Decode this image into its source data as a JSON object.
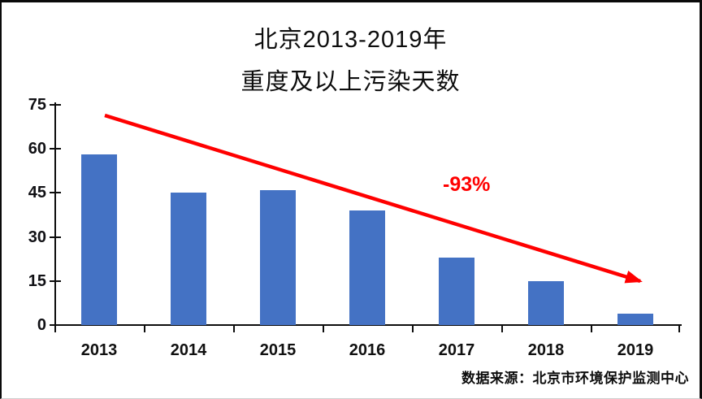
{
  "title": {
    "line1": "北京2013-2019年",
    "line2": "重度及以上污染天数"
  },
  "chart_data": {
    "type": "bar",
    "categories": [
      "2013",
      "2014",
      "2015",
      "2016",
      "2017",
      "2018",
      "2019"
    ],
    "values": [
      58,
      45,
      46,
      39,
      23,
      15,
      4
    ],
    "title": "北京2013-2019年 重度及以上污染天数",
    "xlabel": "",
    "ylabel": "",
    "ylim": [
      0,
      75
    ],
    "yticks": [
      0,
      15,
      30,
      45,
      60,
      75
    ],
    "grid": false,
    "legend": "none",
    "bar_color": "#4472C4",
    "annotation": "-93%",
    "annotation_color": "#FF0000",
    "trend_arrow": "downward red arrow from above 2013 bar to above 2019 bar"
  },
  "source": {
    "text": "数据来源：北京市环境保护监测中心"
  },
  "colors": {
    "bar": "#4472C4",
    "arrow": "#FF0000",
    "axis": "#0d0d0d",
    "background": "#ffffff"
  }
}
